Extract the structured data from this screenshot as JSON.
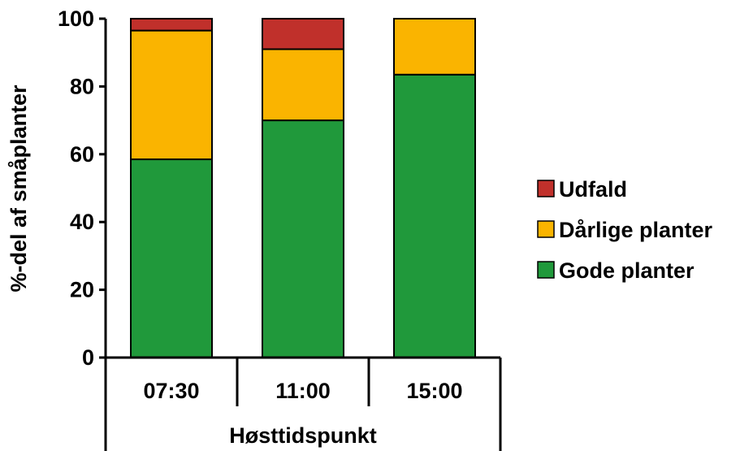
{
  "chart_data": {
    "type": "bar",
    "stacked": true,
    "categories": [
      "07:30",
      "11:00",
      "15:00"
    ],
    "series": [
      {
        "name": "Gode planter",
        "values": [
          58.5,
          70,
          83.5
        ],
        "color": "#20993b"
      },
      {
        "name": "Dårlige planter",
        "values": [
          38,
          21,
          16.5
        ],
        "color": "#fab400"
      },
      {
        "name": "Udfald",
        "values": [
          3.5,
          9,
          0
        ],
        "color": "#c0302b"
      }
    ],
    "legend_order": [
      "Udfald",
      "Dårlige planter",
      "Gode planter"
    ],
    "xlabel": "Høsttidspunkt",
    "ylabel": "%-del  af småplanter",
    "ylim": [
      0,
      100
    ],
    "yticks": [
      "0",
      "20",
      "40",
      "60",
      "80",
      "100"
    ],
    "grid": false,
    "legend_position": "right"
  }
}
